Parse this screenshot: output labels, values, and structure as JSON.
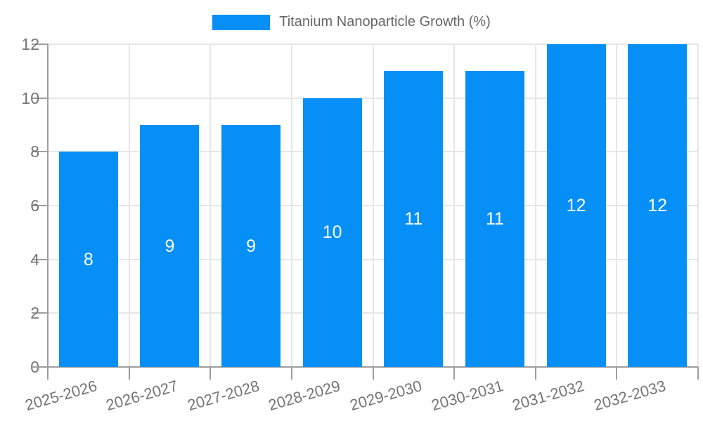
{
  "chart_data": {
    "type": "bar",
    "title": "Titanium Nanoparticle Growth (%)",
    "categories": [
      "2025-2026",
      "2026-2027",
      "2027-2028",
      "2028-2029",
      "2029-2030",
      "2030-2031",
      "2031-2032",
      "2032-2033"
    ],
    "values": [
      8,
      9,
      9,
      10,
      11,
      11,
      12,
      12
    ],
    "bar_labels": [
      "8",
      "9",
      "9",
      "10",
      "11",
      "11",
      "12",
      "12"
    ],
    "xlabel": "",
    "ylabel": "",
    "ylim": [
      0,
      12
    ],
    "yticks": [
      0,
      2,
      4,
      6,
      8,
      10,
      12
    ],
    "grid": true,
    "legend_position": "top",
    "legend_entries": [
      "Titanium Nanoparticle Growth (%)"
    ]
  },
  "colors": {
    "bar": "#0690F7",
    "bar_label": "#FFFFFF",
    "grid": "#E6E6E6",
    "axis": "#9E9E9E",
    "tick_text": "#757575",
    "legend_text": "#666666",
    "background": "#FFFFFF"
  }
}
